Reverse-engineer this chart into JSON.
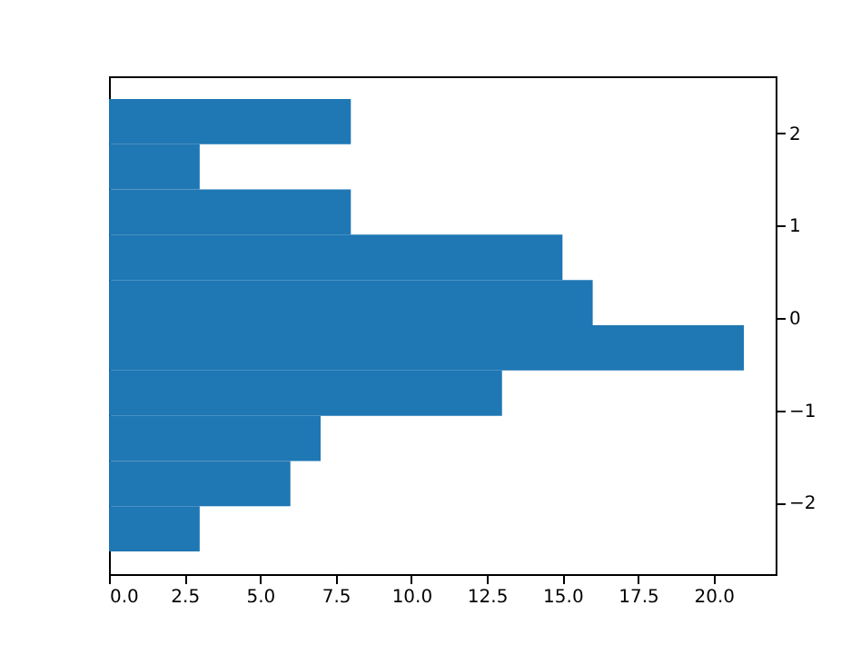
{
  "chart_data": {
    "type": "histogram",
    "orientation": "horizontal",
    "bins": [
      -2.53,
      -2.04,
      -1.55,
      -1.06,
      -0.57,
      -0.08,
      0.41,
      0.9,
      1.39,
      1.88,
      2.37
    ],
    "values": [
      3,
      6,
      7,
      13,
      21,
      16,
      15,
      8,
      3,
      8
    ],
    "color": "#1f77b4",
    "xlim": [
      0,
      22.05
    ],
    "xticks": [
      {
        "value": 0,
        "label": "0.0"
      },
      {
        "value": 2.5,
        "label": "2.5"
      },
      {
        "value": 5,
        "label": "5.0"
      },
      {
        "value": 7.5,
        "label": "7.5"
      },
      {
        "value": 10,
        "label": "10.0"
      },
      {
        "value": 12.5,
        "label": "12.5"
      },
      {
        "value": 15,
        "label": "15.0"
      },
      {
        "value": 17.5,
        "label": "17.5"
      },
      {
        "value": 20,
        "label": "20.0"
      }
    ],
    "ylim": [
      -2.775,
      2.615
    ],
    "yticks": [
      {
        "value": -2,
        "label": "−2"
      },
      {
        "value": -1,
        "label": "−1"
      },
      0,
      1,
      2
    ],
    "grid": false
  }
}
